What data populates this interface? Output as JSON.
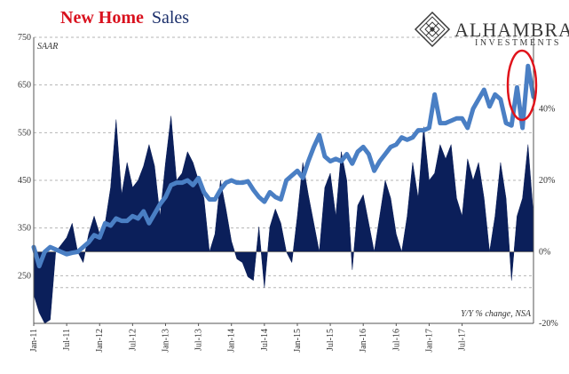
{
  "title": {
    "part1": "New Home",
    "part2": "Sales"
  },
  "logo": {
    "name": "ALHAMBRA",
    "sub": "INVESTMENTS"
  },
  "colors": {
    "line": "#4a7fc4",
    "area": "#0b1f5a",
    "title_red": "#d9111e",
    "title_navy": "#1b2f6b",
    "highlight": "#e0131b",
    "grid": "#b5b5b5"
  },
  "chart_data": {
    "type": "line",
    "title": "New Home Sales",
    "left_axis_note": "SAAR",
    "right_axis_note": "Y/Y % change, NSA",
    "left_ylim": [
      150,
      750
    ],
    "left_ticks": [
      "250",
      "350",
      "450",
      "550",
      "650",
      "750"
    ],
    "right_ylim": [
      -20,
      60
    ],
    "right_ticks": [
      "0%",
      "20%",
      "40%",
      "-20%"
    ],
    "x_tick_labels": [
      "Jan-11",
      "Jul-11",
      "Jan-12",
      "Jul-12",
      "Jan-13",
      "Jul-13",
      "Jan-14",
      "Jul-14",
      "Jan-15",
      "Jul-15",
      "Jan-16",
      "Jul-16",
      "Jan-17",
      "Jul-17"
    ],
    "start_month": "Jan-11",
    "series": [
      {
        "name": "SAAR",
        "axis": "left",
        "type": "line",
        "values": [
          310,
          270,
          300,
          310,
          305,
          300,
          295,
          298,
          300,
          310,
          320,
          335,
          330,
          360,
          355,
          370,
          365,
          365,
          375,
          370,
          385,
          360,
          380,
          400,
          415,
          440,
          445,
          445,
          450,
          440,
          455,
          425,
          410,
          410,
          430,
          445,
          450,
          445,
          445,
          448,
          430,
          415,
          405,
          425,
          415,
          410,
          450,
          460,
          470,
          455,
          490,
          520,
          545,
          500,
          490,
          495,
          490,
          505,
          485,
          510,
          520,
          505,
          470,
          490,
          505,
          520,
          525,
          540,
          535,
          540,
          555,
          555,
          560,
          630,
          570,
          570,
          575,
          580,
          580,
          560,
          600,
          620,
          640,
          605,
          630,
          620,
          570,
          565,
          645,
          560,
          690,
          625
        ]
      },
      {
        "name": "Y/Y % change, NSA",
        "axis": "right",
        "type": "area",
        "values": [
          -12,
          -17,
          -20,
          -19,
          0,
          2,
          4,
          8,
          0,
          -3,
          5,
          10,
          5,
          8,
          18,
          37,
          16,
          25,
          18,
          20,
          24,
          30,
          24,
          10,
          25,
          38,
          20,
          22,
          28,
          25,
          20,
          15,
          0,
          5,
          20,
          12,
          3,
          -2,
          -3,
          -7,
          -8,
          7,
          -10,
          7,
          12,
          8,
          0,
          -3,
          10,
          25,
          16,
          8,
          0,
          18,
          22,
          10,
          28,
          20,
          -5,
          13,
          16,
          8,
          0,
          10,
          20,
          15,
          5,
          0,
          10,
          25,
          15,
          35,
          20,
          22,
          30,
          26,
          30,
          15,
          10,
          26,
          20,
          25,
          15,
          0,
          10,
          25,
          15,
          -8,
          10,
          15,
          30,
          10
        ]
      }
    ]
  }
}
